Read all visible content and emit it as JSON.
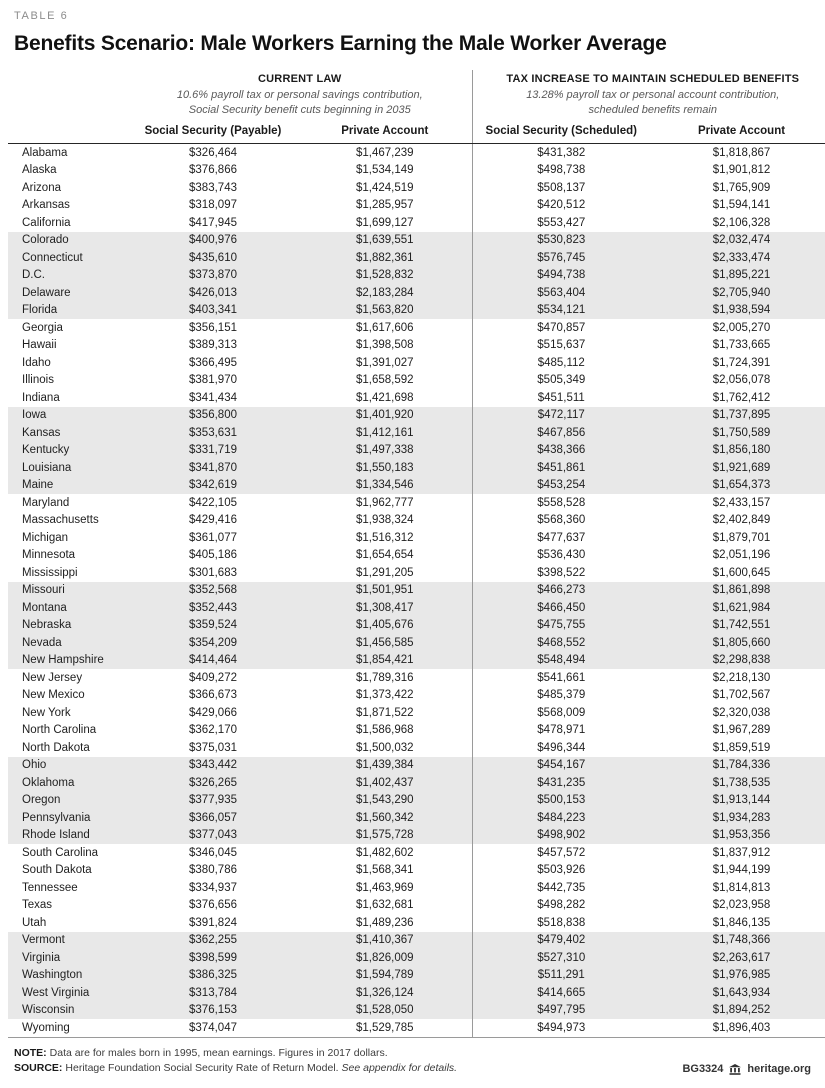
{
  "chart_data": {
    "type": "table",
    "table_label": "TABLE 6",
    "title": "Benefits Scenario: Male Workers Earning the Male Worker Average",
    "column_groups": [
      {
        "label": "CURRENT LAW",
        "subtitle_lines": [
          "10.6% payroll tax or personal savings contribution,",
          "Social Security benefit cuts beginning in 2035"
        ],
        "columns": [
          "Social Security (Payable)",
          "Private Account"
        ]
      },
      {
        "label": "TAX INCREASE TO MAINTAIN SCHEDULED BENEFITS",
        "subtitle_lines": [
          "13.28% payroll tax or personal account contribution,",
          "scheduled benefits remain"
        ],
        "columns": [
          "Social Security (Scheduled)",
          "Private Account"
        ]
      }
    ],
    "rows": [
      [
        "Alabama",
        "$326,464",
        "$1,467,239",
        "$431,382",
        "$1,818,867"
      ],
      [
        "Alaska",
        "$376,866",
        "$1,534,149",
        "$498,738",
        "$1,901,812"
      ],
      [
        "Arizona",
        "$383,743",
        "$1,424,519",
        "$508,137",
        "$1,765,909"
      ],
      [
        "Arkansas",
        "$318,097",
        "$1,285,957",
        "$420,512",
        "$1,594,141"
      ],
      [
        "California",
        "$417,945",
        "$1,699,127",
        "$553,427",
        "$2,106,328"
      ],
      [
        "Colorado",
        "$400,976",
        "$1,639,551",
        "$530,823",
        "$2,032,474"
      ],
      [
        "Connecticut",
        "$435,610",
        "$1,882,361",
        "$576,745",
        "$2,333,474"
      ],
      [
        "D.C.",
        "$373,870",
        "$1,528,832",
        "$494,738",
        "$1,895,221"
      ],
      [
        "Delaware",
        "$426,013",
        "$2,183,284",
        "$563,404",
        "$2,705,940"
      ],
      [
        "Florida",
        "$403,341",
        "$1,563,820",
        "$534,121",
        "$1,938,594"
      ],
      [
        "Georgia",
        "$356,151",
        "$1,617,606",
        "$470,857",
        "$2,005,270"
      ],
      [
        "Hawaii",
        "$389,313",
        "$1,398,508",
        "$515,637",
        "$1,733,665"
      ],
      [
        "Idaho",
        "$366,495",
        "$1,391,027",
        "$485,112",
        "$1,724,391"
      ],
      [
        "Illinois",
        "$381,970",
        "$1,658,592",
        "$505,349",
        "$2,056,078"
      ],
      [
        "Indiana",
        "$341,434",
        "$1,421,698",
        "$451,511",
        "$1,762,412"
      ],
      [
        "Iowa",
        "$356,800",
        "$1,401,920",
        "$472,117",
        "$1,737,895"
      ],
      [
        "Kansas",
        "$353,631",
        "$1,412,161",
        "$467,856",
        "$1,750,589"
      ],
      [
        "Kentucky",
        "$331,719",
        "$1,497,338",
        "$438,366",
        "$1,856,180"
      ],
      [
        "Louisiana",
        "$341,870",
        "$1,550,183",
        "$451,861",
        "$1,921,689"
      ],
      [
        "Maine",
        "$342,619",
        "$1,334,546",
        "$453,254",
        "$1,654,373"
      ],
      [
        "Maryland",
        "$422,105",
        "$1,962,777",
        "$558,528",
        "$2,433,157"
      ],
      [
        "Massachusetts",
        "$429,416",
        "$1,938,324",
        "$568,360",
        "$2,402,849"
      ],
      [
        "Michigan",
        "$361,077",
        "$1,516,312",
        "$477,637",
        "$1,879,701"
      ],
      [
        "Minnesota",
        "$405,186",
        "$1,654,654",
        "$536,430",
        "$2,051,196"
      ],
      [
        "Mississippi",
        "$301,683",
        "$1,291,205",
        "$398,522",
        "$1,600,645"
      ],
      [
        "Missouri",
        "$352,568",
        "$1,501,951",
        "$466,273",
        "$1,861,898"
      ],
      [
        "Montana",
        "$352,443",
        "$1,308,417",
        "$466,450",
        "$1,621,984"
      ],
      [
        "Nebraska",
        "$359,524",
        "$1,405,676",
        "$475,755",
        "$1,742,551"
      ],
      [
        "Nevada",
        "$354,209",
        "$1,456,585",
        "$468,552",
        "$1,805,660"
      ],
      [
        "New Hampshire",
        "$414,464",
        "$1,854,421",
        "$548,494",
        "$2,298,838"
      ],
      [
        "New Jersey",
        "$409,272",
        "$1,789,316",
        "$541,661",
        "$2,218,130"
      ],
      [
        "New Mexico",
        "$366,673",
        "$1,373,422",
        "$485,379",
        "$1,702,567"
      ],
      [
        "New York",
        "$429,066",
        "$1,871,522",
        "$568,009",
        "$2,320,038"
      ],
      [
        "North Carolina",
        "$362,170",
        "$1,586,968",
        "$478,971",
        "$1,967,289"
      ],
      [
        "North Dakota",
        "$375,031",
        "$1,500,032",
        "$496,344",
        "$1,859,519"
      ],
      [
        "Ohio",
        "$343,442",
        "$1,439,384",
        "$454,167",
        "$1,784,336"
      ],
      [
        "Oklahoma",
        "$326,265",
        "$1,402,437",
        "$431,235",
        "$1,738,535"
      ],
      [
        "Oregon",
        "$377,935",
        "$1,543,290",
        "$500,153",
        "$1,913,144"
      ],
      [
        "Pennsylvania",
        "$366,057",
        "$1,560,342",
        "$484,223",
        "$1,934,283"
      ],
      [
        "Rhode Island",
        "$377,043",
        "$1,575,728",
        "$498,902",
        "$1,953,356"
      ],
      [
        "South Carolina",
        "$346,045",
        "$1,482,602",
        "$457,572",
        "$1,837,912"
      ],
      [
        "South Dakota",
        "$380,786",
        "$1,568,341",
        "$503,926",
        "$1,944,199"
      ],
      [
        "Tennessee",
        "$334,937",
        "$1,463,969",
        "$442,735",
        "$1,814,813"
      ],
      [
        "Texas",
        "$376,656",
        "$1,632,681",
        "$498,282",
        "$2,023,958"
      ],
      [
        "Utah",
        "$391,824",
        "$1,489,236",
        "$518,838",
        "$1,846,135"
      ],
      [
        "Vermont",
        "$362,255",
        "$1,410,367",
        "$479,402",
        "$1,748,366"
      ],
      [
        "Virginia",
        "$398,599",
        "$1,826,009",
        "$527,310",
        "$2,263,617"
      ],
      [
        "Washington",
        "$386,325",
        "$1,594,789",
        "$511,291",
        "$1,976,985"
      ],
      [
        "West Virginia",
        "$313,784",
        "$1,326,124",
        "$414,665",
        "$1,643,934"
      ],
      [
        "Wisconsin",
        "$376,153",
        "$1,528,050",
        "$497,795",
        "$1,894,252"
      ],
      [
        "Wyoming",
        "$374,047",
        "$1,529,785",
        "$494,973",
        "$1,896,403"
      ]
    ],
    "layout_hints": {
      "band_rows_group_size": 5,
      "band_color": "#e8e8e8",
      "column_group_divider": true
    }
  },
  "footer": {
    "note_label": "NOTE:",
    "note_text": "Data are for males born in 1995, mean earnings. Figures in 2017 dollars.",
    "source_label": "SOURCE:",
    "source_text": "Heritage Foundation Social Security Rate of Return Model.",
    "source_italic": "See appendix for details.",
    "doc_id": "BG3324",
    "site": "heritage.org",
    "logo_icon": "heritage-building-icon"
  },
  "colors": {
    "band_gray": "#e8e8e8",
    "rule_dark": "#262626",
    "rule_gray": "#9a9a9a",
    "label_gray": "#8c8c8c"
  }
}
